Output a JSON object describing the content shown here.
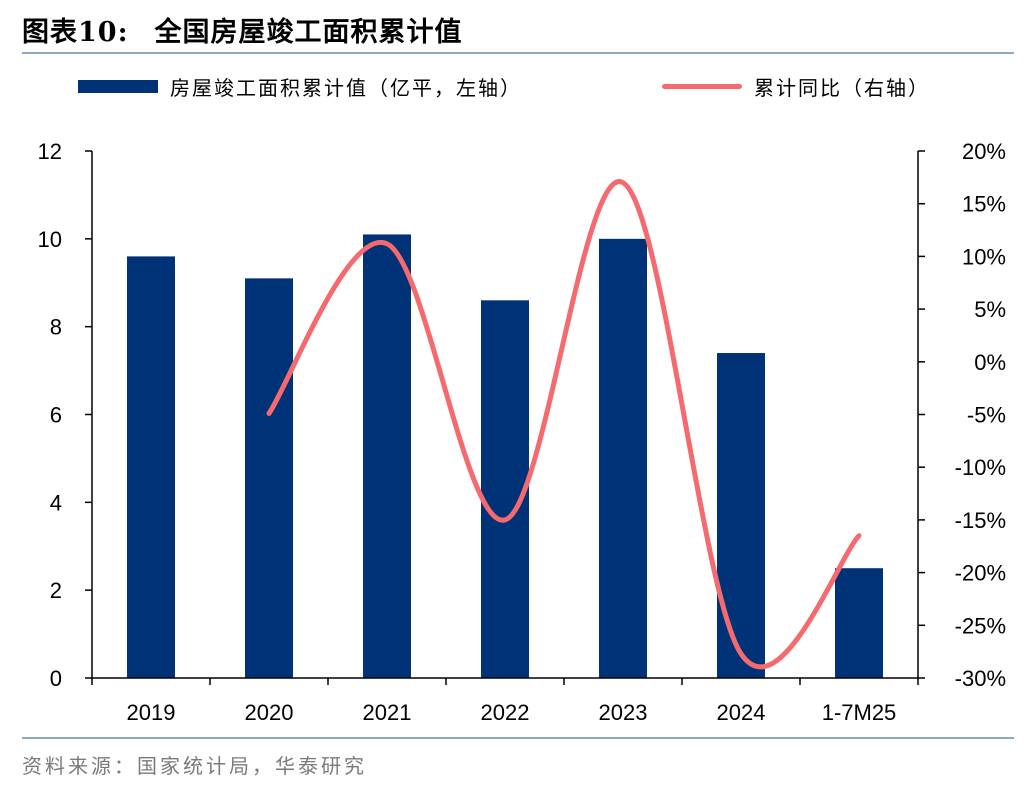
{
  "figure": {
    "title_label": "图表10:",
    "title_text": "全国房屋竣工面积累计值",
    "source": "资料来源：国家统计局，华泰研究"
  },
  "colors": {
    "bar": "#003278",
    "line": "#f56a6e",
    "rule": "#8ea9c8"
  },
  "chart_data": {
    "type": "bar",
    "categories": [
      "2019",
      "2020",
      "2021",
      "2022",
      "2023",
      "2024",
      "1-7M25"
    ],
    "series": [
      {
        "name": "房屋竣工面积累计值（亿平，左轴）",
        "type": "bar",
        "axis": "left",
        "values": [
          9.6,
          9.1,
          10.1,
          8.6,
          10.0,
          7.4,
          2.5
        ]
      },
      {
        "name": "累计同比（右轴）",
        "type": "line",
        "axis": "right",
        "values": [
          null,
          -4.9,
          11.2,
          -15.0,
          17.0,
          -27.7,
          -16.5
        ]
      }
    ],
    "y_left": {
      "min": 0,
      "max": 12,
      "ticks": [
        "0",
        "2",
        "4",
        "6",
        "8",
        "10",
        "12"
      ]
    },
    "y_right": {
      "min": -30,
      "max": 20,
      "ticks": [
        "-30%",
        "-25%",
        "-20%",
        "-15%",
        "-10%",
        "-5%",
        "0%",
        "5%",
        "10%",
        "15%",
        "20%"
      ]
    },
    "legend": {
      "position": "top"
    },
    "grid": false
  }
}
